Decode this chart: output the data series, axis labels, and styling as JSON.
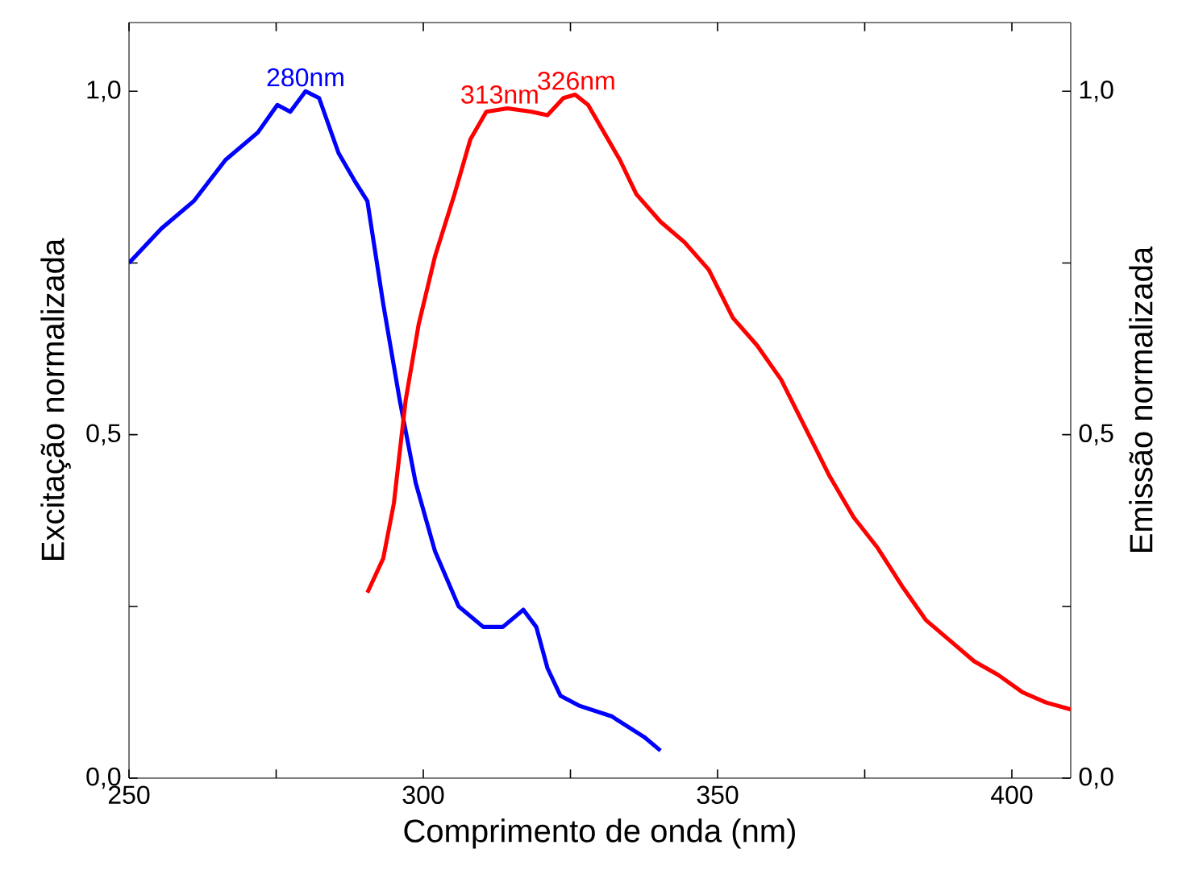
{
  "chart_data": {
    "type": "line",
    "xlabel": "Comprimento de onda (nm)",
    "ylabel": "Excitação normalizada",
    "y2label": "Emissão normalizada",
    "xlim": [
      250,
      410
    ],
    "xticks": [
      250,
      {
        "value": 275,
        "label": null
      },
      300,
      {
        "value": 325,
        "label": null
      },
      350,
      {
        "value": 375,
        "label": null
      },
      400
    ],
    "ylim": [
      0,
      1.1
    ],
    "yticks": [
      {
        "value": 0,
        "label": "0,0"
      },
      {
        "value": 0.25,
        "label": null
      },
      {
        "value": 0.5,
        "label": "0,5"
      },
      {
        "value": 0.75,
        "label": null
      },
      {
        "value": 1.0,
        "label": "1,0"
      }
    ],
    "y2lim": [
      0,
      1.1
    ],
    "y2ticks": [
      {
        "value": 0,
        "label": "0,0"
      },
      {
        "value": 0.25,
        "label": null
      },
      {
        "value": 0.5,
        "label": "0,5"
      },
      {
        "value": 0.75,
        "label": null
      },
      {
        "value": 1.0,
        "label": "1,0"
      }
    ],
    "grid": false,
    "marker": "none",
    "line_style": "solid",
    "series": [
      {
        "color": "#0000ff",
        "x": [
          250,
          255.5,
          261,
          266.4,
          271.9,
          275.2,
          277.4,
          280,
          282.3,
          285.6,
          288.3,
          290.5,
          293.2,
          296,
          298.7,
          302,
          306,
          310.2,
          313.5,
          317,
          319.2,
          321.1,
          323.3,
          326.6,
          332,
          337.5,
          340.3
        ],
        "values": [
          0.75,
          0.8,
          0.84,
          0.9,
          0.94,
          0.98,
          0.97,
          1.0,
          0.99,
          0.91,
          0.87,
          0.84,
          0.69,
          0.55,
          0.43,
          0.33,
          0.25,
          0.22,
          0.22,
          0.245,
          0.22,
          0.16,
          0.12,
          0.105,
          0.09,
          0.06,
          0.04
        ]
      },
      {
        "color": "#ff0000",
        "axis": "y2",
        "x": [
          290.5,
          293.2,
          295,
          297,
          299.2,
          302,
          305.3,
          308,
          310.7,
          314.3,
          318.4,
          321.1,
          323.8,
          325.8,
          328,
          330.7,
          333.4,
          336.2,
          340.3,
          344.4,
          348.5,
          352.6,
          356.7,
          360.8,
          364.9,
          369,
          373.1,
          377.2,
          381.3,
          385.4,
          389.5,
          393.6,
          397.7,
          401.8,
          405.8,
          410
        ],
        "values": [
          0.27,
          0.32,
          0.4,
          0.55,
          0.66,
          0.76,
          0.85,
          0.93,
          0.97,
          0.975,
          0.97,
          0.965,
          0.99,
          0.995,
          0.98,
          0.94,
          0.9,
          0.85,
          0.81,
          0.78,
          0.74,
          0.67,
          0.63,
          0.58,
          0.51,
          0.44,
          0.38,
          0.335,
          0.28,
          0.23,
          0.2,
          0.17,
          0.15,
          0.125,
          0.11,
          0.1
        ]
      }
    ],
    "annotations": [
      {
        "text": "280nm",
        "x": 280,
        "y": 1.0
      },
      {
        "text": "313nm",
        "x": 313,
        "y": 0.975
      },
      {
        "text": "326nm",
        "x": 326,
        "y": 0.995
      }
    ]
  }
}
